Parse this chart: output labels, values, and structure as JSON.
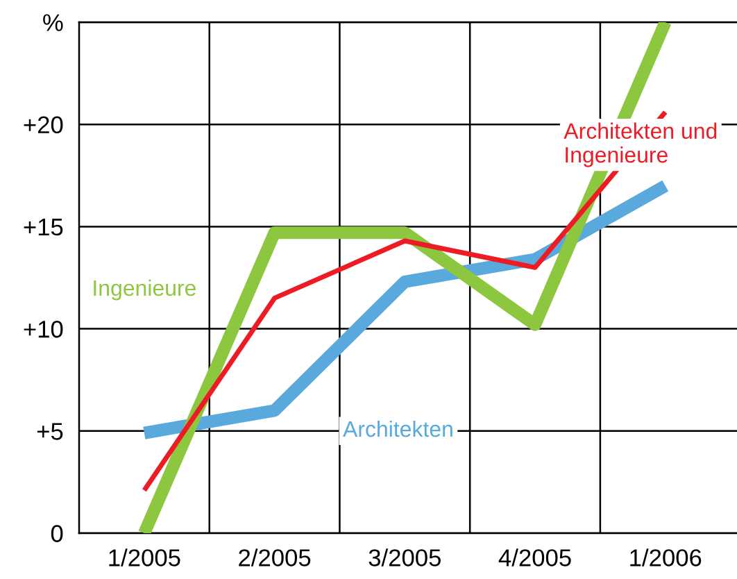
{
  "chart_data": {
    "type": "line",
    "categories": [
      "1/2005",
      "2/2005",
      "3/2005",
      "4/2005",
      "1/2006"
    ],
    "series": [
      {
        "name": "Architekten",
        "color": "#5aa9dc",
        "values": [
          4.9,
          6.0,
          12.3,
          13.4,
          17.0
        ]
      },
      {
        "name": "Ingenieure",
        "color": "#8dc63f",
        "values": [
          0,
          14.7,
          14.7,
          10.2,
          25
        ]
      },
      {
        "name": "Architekten und Ingenieure",
        "color": "#ed1c24",
        "values": [
          2.1,
          11.5,
          14.3,
          13.0,
          20.6
        ]
      }
    ],
    "ylim": [
      0,
      25
    ],
    "yticks": [
      {
        "value": 0,
        "label": "0"
      },
      {
        "value": 5,
        "label": "+5"
      },
      {
        "value": 10,
        "label": "+10"
      },
      {
        "value": 15,
        "label": "+15"
      },
      {
        "value": 20,
        "label": "+20"
      },
      {
        "value": 25,
        "label": "%"
      }
    ],
    "grid": true,
    "legend": false,
    "marker": "none",
    "line_style": "solid"
  }
}
